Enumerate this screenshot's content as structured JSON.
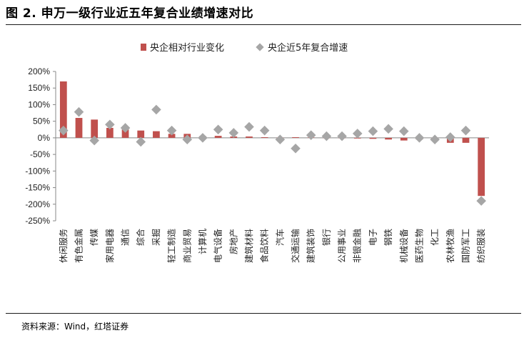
{
  "title": "图 2. 申万一级行业近五年复合业绩增速对比",
  "source": "资料来源：Wind，红塔证券",
  "colors": {
    "bar": "#C0504D",
    "marker": "#A6A6A6",
    "axis": "#888888"
  },
  "chart_data": {
    "type": "bar",
    "title": "",
    "xlabel": "",
    "ylabel": "",
    "ylim": [
      -250,
      200
    ],
    "yticks": [
      "200%",
      "150%",
      "100%",
      "50%",
      "0%",
      "-50%",
      "-100%",
      "-150%",
      "-200%",
      "-250%"
    ],
    "ytick_values": [
      200,
      150,
      100,
      50,
      0,
      -50,
      -100,
      -150,
      -200,
      -250
    ],
    "legend_position": "top",
    "grid": false,
    "categories": [
      "休闲服务",
      "有色金属",
      "传媒",
      "家用电器",
      "通信",
      "综合",
      "采掘",
      "轻工制造",
      "商业贸易",
      "计算机",
      "电气设备",
      "房地产",
      "建筑材料",
      "食品饮料",
      "汽车",
      "交通运输",
      "建筑装饰",
      "银行",
      "公用事业",
      "非银金融",
      "电子",
      "钢铁",
      "机械设备",
      "医药生物",
      "化工",
      "农林牧渔",
      "国防军工",
      "纺织服装"
    ],
    "series": [
      {
        "name": "央企相对行业变化",
        "kind": "bar",
        "values": [
          170,
          60,
          55,
          30,
          25,
          22,
          20,
          12,
          12,
          5,
          6,
          4,
          4,
          2,
          1,
          2,
          1,
          0,
          0,
          -2,
          -3,
          -5,
          -8,
          -5,
          -5,
          -15,
          -15,
          -175
        ]
      },
      {
        "name": "央企近5年复合增速",
        "kind": "marker",
        "values": [
          22,
          78,
          -8,
          40,
          30,
          -12,
          85,
          22,
          -5,
          0,
          25,
          15,
          33,
          22,
          -5,
          -32,
          8,
          5,
          5,
          13,
          20,
          27,
          20,
          0,
          -5,
          2,
          22,
          -190
        ]
      }
    ]
  }
}
